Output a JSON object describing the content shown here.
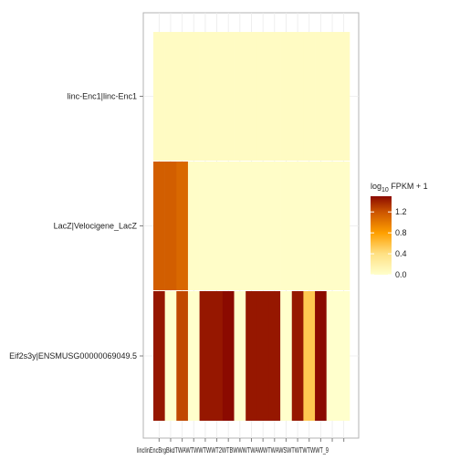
{
  "chart_data": {
    "type": "heatmap",
    "title": "",
    "xlabel": "",
    "ylabel": "",
    "rows": [
      "linc-Enc1|linc-Enc1",
      "LacZ|Velocigene_LacZ",
      "Eif2s3y|ENSMUSG00000069049.5"
    ],
    "x_labels_visible": "linclinEncBrgBkdTWAWTWWTWWT2WTBWWWTWAWWTWAWSWTWTWTWWT_9",
    "n_columns": 17,
    "values": [
      [
        0.05,
        0.05,
        0.05,
        0.05,
        0.05,
        0.05,
        0.05,
        0.05,
        0.05,
        0.05,
        0.05,
        0.05,
        0.05,
        0.05,
        0.05,
        0.05,
        0.05
      ],
      [
        1.15,
        1.15,
        1.1,
        0.02,
        0.02,
        0.02,
        0.02,
        0.02,
        0.02,
        0.02,
        0.02,
        0.02,
        0.02,
        0.02,
        0.02,
        0.02,
        0.02
      ],
      [
        1.45,
        0.0,
        1.25,
        0.0,
        1.45,
        1.45,
        1.5,
        0.0,
        1.45,
        1.45,
        1.45,
        0.0,
        1.45,
        0.55,
        1.5,
        0.0,
        0.0
      ]
    ],
    "legend": {
      "title_base": "log",
      "title_sub": "10",
      "title_rest": " FPKM + 1",
      "ticks": [
        "0.0",
        "0.4",
        "0.8",
        "1.2"
      ],
      "tick_values": [
        0.0,
        0.4,
        0.8,
        1.2
      ],
      "range": [
        0.0,
        1.5
      ]
    },
    "colors": {
      "low": "#FFFFCC",
      "mid_low": "#FFE082",
      "mid": "#FFA000",
      "mid_high": "#CC5500",
      "high": "#8B0A00",
      "panel_border": "#B3B3B3",
      "grid": "#EBEBEB"
    }
  }
}
